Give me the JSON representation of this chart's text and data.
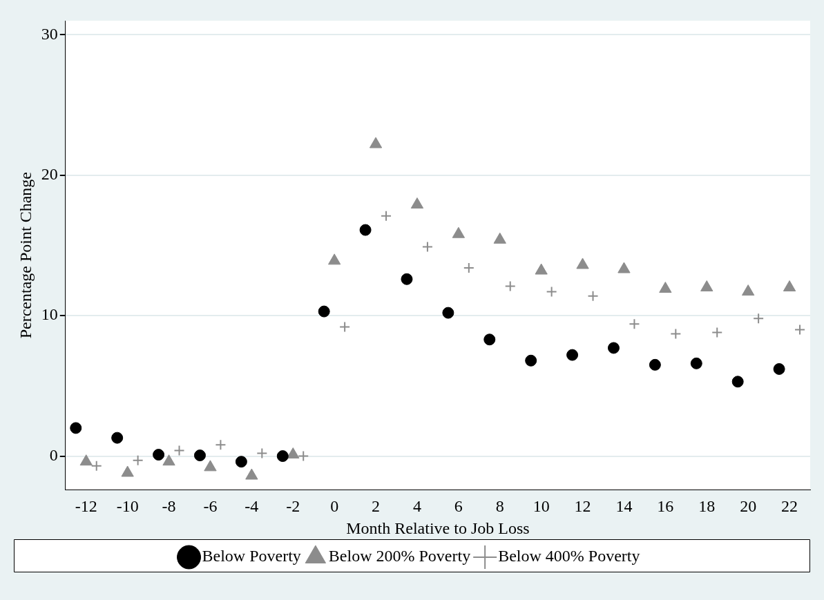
{
  "chart_data": {
    "type": "scatter",
    "xlabel": "Month Relative to Job Loss",
    "ylabel": "Percentage Point Change",
    "xlim": [
      -13,
      23
    ],
    "xticks": [
      -12,
      -10,
      -8,
      -6,
      -4,
      -2,
      0,
      2,
      4,
      6,
      8,
      10,
      12,
      14,
      16,
      18,
      20,
      22
    ],
    "ylim": [
      -2.4,
      31
    ],
    "yticks": [
      0,
      10,
      20,
      30
    ],
    "grid": "y",
    "legend": "bottom",
    "series": [
      {
        "name": "Below Poverty",
        "color": "#000000",
        "marker": "circle",
        "x": [
          -12.5,
          -10.5,
          -8.5,
          -6.5,
          -4.5,
          -2.5,
          -0.5,
          1.5,
          3.5,
          5.5,
          7.5,
          9.5,
          11.5,
          13.5,
          15.5,
          17.5,
          19.5,
          21.5
        ],
        "values": [
          2.0,
          1.3,
          0.1,
          0.05,
          -0.4,
          0,
          10.3,
          16.1,
          12.6,
          10.2,
          8.3,
          6.8,
          7.2,
          7.7,
          6.5,
          6.6,
          5.3,
          6.2
        ]
      },
      {
        "name": "Below 200% Poverty",
        "color": "#8c8c8c",
        "marker": "triangle",
        "x": [
          -12,
          -10,
          -8,
          -6,
          -4,
          -2,
          0,
          2,
          4,
          6,
          8,
          10,
          12,
          14,
          16,
          18,
          20,
          22
        ],
        "values": [
          -0.4,
          -1.2,
          -0.4,
          -0.8,
          -1.4,
          0.1,
          13.9,
          22.2,
          17.9,
          15.8,
          15.4,
          13.2,
          13.6,
          13.3,
          11.9,
          12.0,
          11.7,
          12.0
        ]
      },
      {
        "name": "Below 400% Poverty",
        "color": "#8c8c8c",
        "marker": "cross",
        "x": [
          -11.5,
          -9.5,
          -7.5,
          -5.5,
          -3.5,
          -1.5,
          0.5,
          2.5,
          4.5,
          6.5,
          8.5,
          10.5,
          12.5,
          14.5,
          16.5,
          18.5,
          20.5,
          22.5
        ],
        "values": [
          -0.7,
          -0.3,
          0.4,
          0.8,
          0.2,
          0,
          9.2,
          17.1,
          14.9,
          13.4,
          12.1,
          11.7,
          11.4,
          9.4,
          8.7,
          8.8,
          9.8,
          9.0
        ]
      }
    ]
  }
}
